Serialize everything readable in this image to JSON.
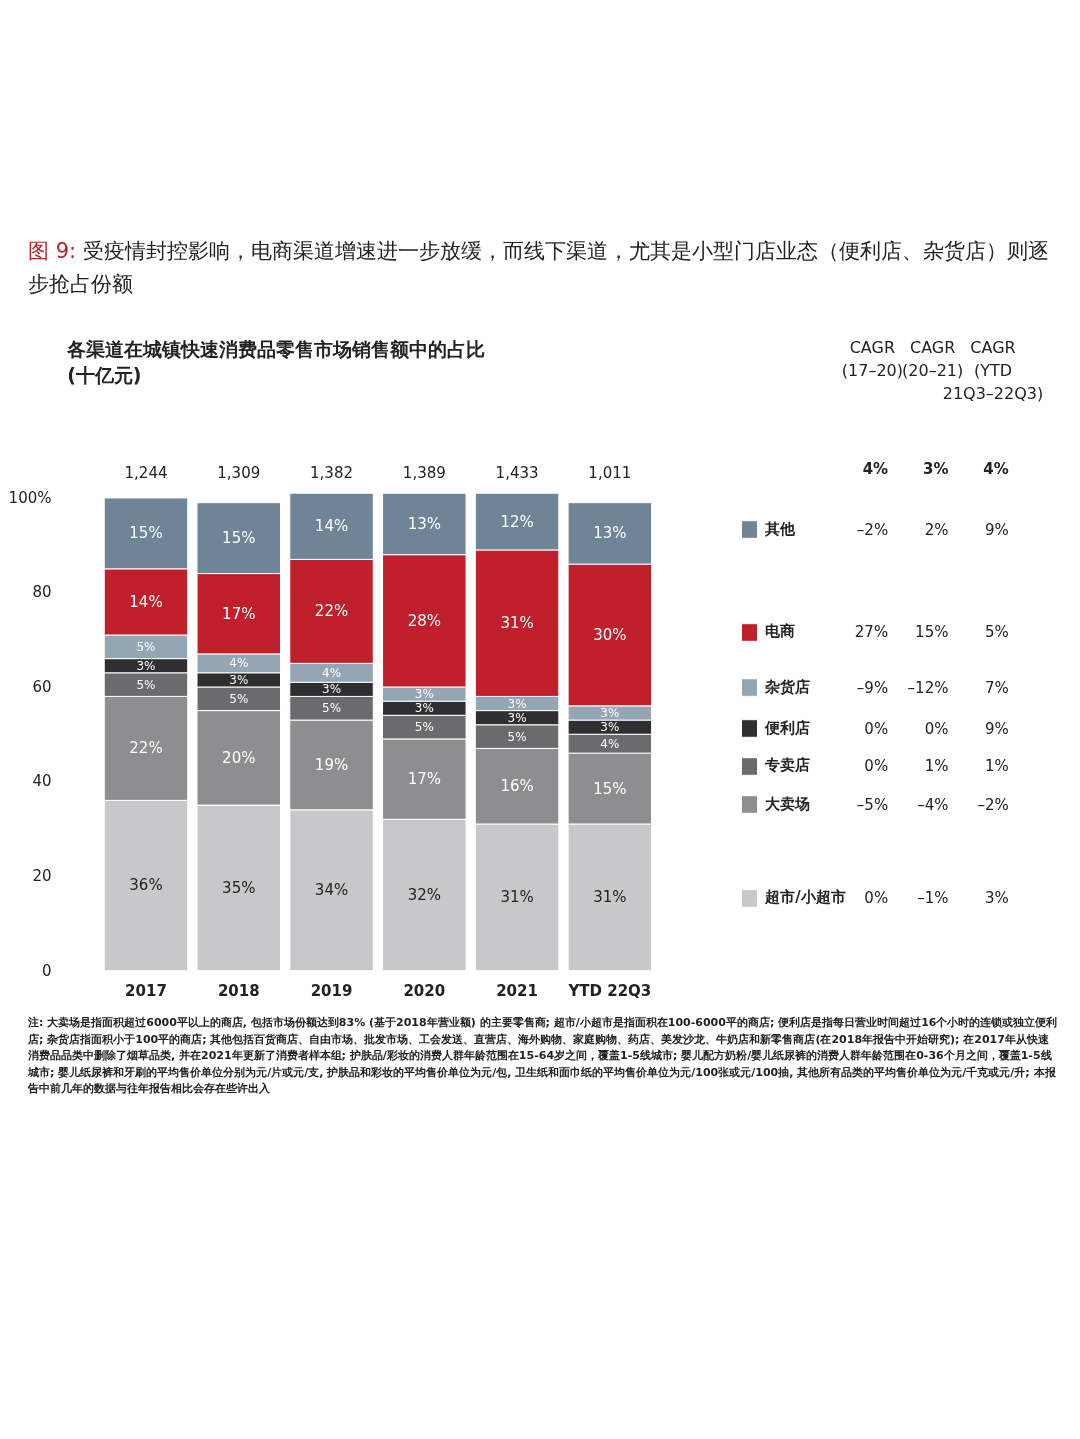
{
  "chart_data": {
    "type": "bar",
    "stacked": true,
    "title": "图 9: 受疫情封控影响，电商渠道增速进一步放缓，而线下渠道，尤其是小型门店业态（便利店、杂货店）则逐步抢占份额",
    "subtitle": "各渠道在城镇快速消费品零售市场销售额中的占比\n(十亿元)",
    "categories": [
      "2017",
      "2018",
      "2019",
      "2020",
      "2021",
      "YTD 22Q3"
    ],
    "series": [
      {
        "name": "超市/小超市",
        "color": "#c8c8ca",
        "values": [
          36,
          35,
          34,
          32,
          31,
          31
        ],
        "value_labels": [
          "36%",
          "35%",
          "34%",
          "32%",
          "31%",
          "31%"
        ]
      },
      {
        "name": "大卖场",
        "color": "#8e8e91",
        "values": [
          22,
          20,
          19,
          17,
          16,
          15
        ],
        "value_labels": [
          "22%",
          "20%",
          "19%",
          "17%",
          "16%",
          "15%"
        ]
      },
      {
        "name": "专卖店",
        "color": "#6b6b6e",
        "values": [
          5,
          5,
          5,
          5,
          5,
          4
        ],
        "value_labels": [
          "5%",
          "5%",
          "5%",
          "5%",
          "5%",
          "4%"
        ]
      },
      {
        "name": "便利店",
        "color": "#2f2f31",
        "values": [
          3,
          3,
          3,
          3,
          3,
          3
        ],
        "value_labels": [
          "3%",
          "3%",
          "3%",
          "3%",
          "3%",
          "3%"
        ]
      },
      {
        "name": "杂货店",
        "color": "#94a5b3",
        "values": [
          5,
          4,
          4,
          3,
          3,
          3
        ],
        "value_labels": [
          "5%",
          "4%",
          "4%",
          "3%",
          "3%",
          "3%"
        ]
      },
      {
        "name": "电商",
        "color": "#c0202c",
        "values": [
          14,
          17,
          22,
          28,
          31,
          30
        ],
        "value_labels": [
          "14%",
          "17%",
          "22%",
          "28%",
          "31%",
          "30%"
        ]
      },
      {
        "name": "其他",
        "color": "#6f8597",
        "values": [
          15,
          15,
          14,
          13,
          12,
          13
        ],
        "value_labels": [
          "15%",
          "15%",
          "14%",
          "13%",
          "12%",
          "13%"
        ]
      }
    ],
    "ylim": [
      0,
      102
    ],
    "yticks": [
      0,
      20,
      40,
      60,
      80,
      {
        "value": 100,
        "label": "100%"
      }
    ],
    "grid": false,
    "legend": "right",
    "annotations": [
      "1,244",
      "1,309",
      "1,382",
      "1,389",
      "1,433",
      "1,011",
      "CAGR\n(17–20)",
      "CAGR\n(20–21)",
      "CAGR\n(YTD\n21Q3–22Q3)",
      "4%",
      "3%",
      "4%",
      "–2%",
      "2%",
      "9%",
      "27%",
      "15%",
      "5%",
      "–9%",
      "–12%",
      "7%",
      "0%",
      "0%",
      "9%",
      "0%",
      "1%",
      "1%",
      "–5%",
      "–4%",
      "–2%",
      "0%",
      "–1%",
      "3%",
      "注: 大卖场是指面积超过6000平以上的商店, 包括市场份额达到83% (基于2018年营业额) 的主要零售商; 超市/小超市是指面积在100-6000平的商店; 便利店是指每日营业时间超过16个小时的连锁或独立便利店; 杂货店指面积小于100平的商店; 其他包括百货商店、自由市场、批发市场、工会发送、直营店、海外购物、家庭购物、药店、美发沙龙、牛奶店和新零售商店(在2018年报告中开始研究); 在2017年从快速消费品品类中删除了烟草品类, 并在2021年更新了消费者样本组; 护肤品/彩妆的消费人群年龄范围在15-64岁之间，覆盖1-5线城市; 婴儿配方奶粉/婴儿纸尿裤的消费人群年龄范围在0-36个月之间，覆盖1-5线城市; 婴儿纸尿裤和牙刷的平均售价单位分别为元/片或元/支, 护肤品和彩妆的平均售价单位为元/包, 卫生纸和面巾纸的平均售价单位为元/100张或元/100抽, 其他所有品类的平均售价单位为元/千克或元/升; 本报告中前几年的数据与往年报告相比会存在些许出入"
    ]
  }
}
